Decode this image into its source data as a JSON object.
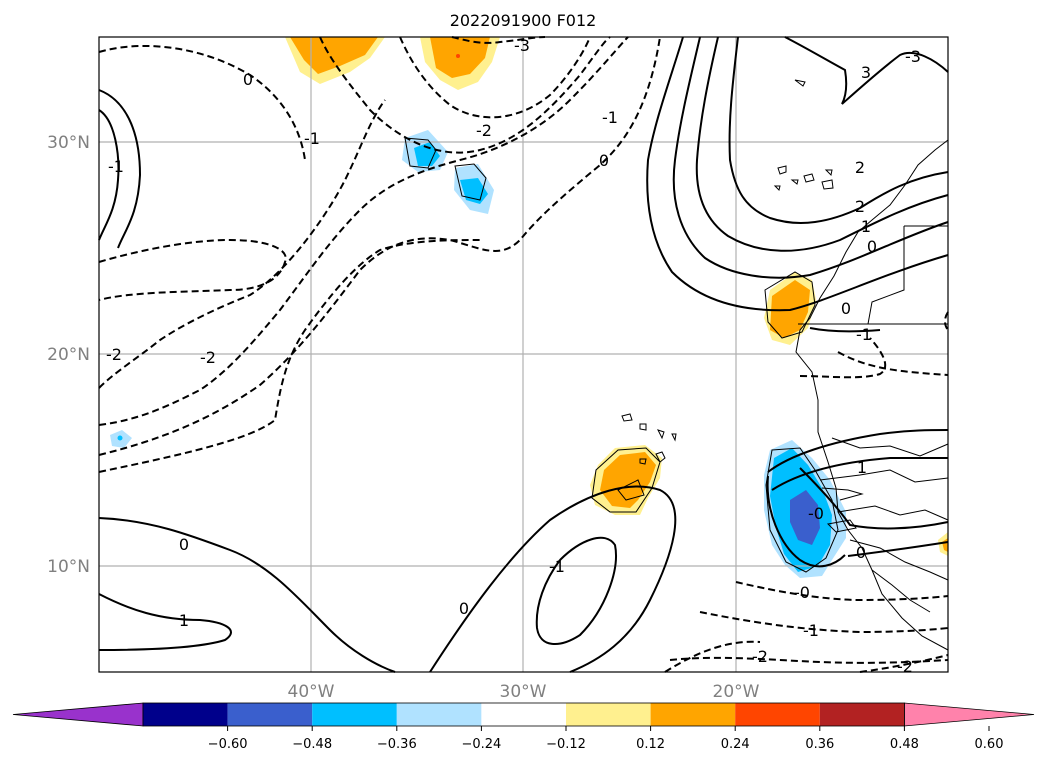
{
  "title": "2022091900 F012",
  "map": {
    "lat_labels": [
      "30°N",
      "20°N",
      "10°N"
    ],
    "lon_labels": [
      "40°W",
      "30°W",
      "20°W"
    ]
  },
  "colorbar": {
    "ticks": [
      "−0.60",
      "−0.48",
      "−0.36",
      "−0.24",
      "−0.12",
      "0.12",
      "0.24",
      "0.36",
      "0.48",
      "0.60"
    ],
    "colors": [
      "#9932cc",
      "#00008b",
      "#3a5fcd",
      "#00bfff",
      "#b0e2ff",
      "#ffffff",
      "#fff08f",
      "#ffa500",
      "#ff4500",
      "#b22222",
      "#ff82ab"
    ]
  },
  "contour_labels": {
    "c1": "0",
    "c2": "-3",
    "c3": "-1",
    "c4": "-2",
    "c5": "-1",
    "c6": "0",
    "c7": "-1",
    "c8": "-2",
    "c9": "3",
    "c10": "-3",
    "c11": "2",
    "c12": "2",
    "c13": "1",
    "c14": "0",
    "c15": "0",
    "c16": "-1",
    "c17": "-2",
    "c18": "1",
    "c19": "-0",
    "c20": "0",
    "c21": "1",
    "c22": "0",
    "c23": "-1",
    "c24": "0",
    "c25": "-0",
    "c26": "-1",
    "c27": "-2",
    "c28": "-2"
  }
}
